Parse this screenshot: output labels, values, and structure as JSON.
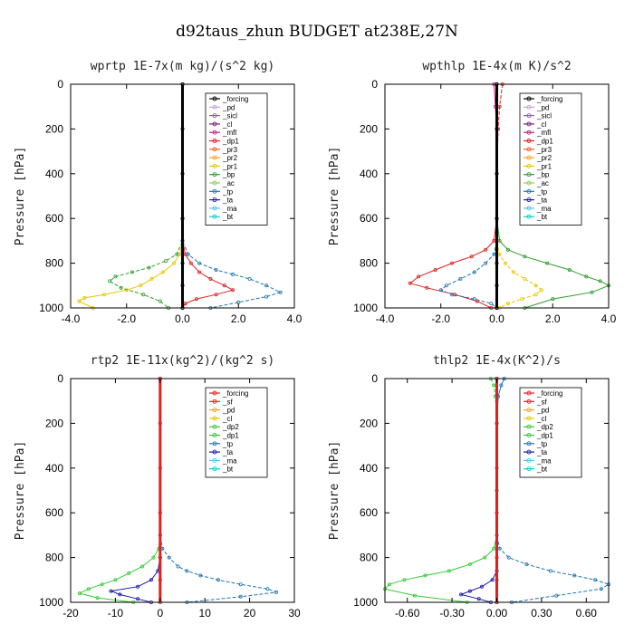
{
  "figure": {
    "title": "d92taus_zhun  BUDGET at238E,27N"
  },
  "chart_data": [
    {
      "type": "line",
      "title": "wprtp  1E-7x(m kg)/(s^2 kg)",
      "ylabel": "Pressure [hPa]",
      "xlim": [
        -4,
        4
      ],
      "ylim": [
        1000,
        0
      ],
      "xticks": [
        "-4.0",
        "-2.0",
        "0.0",
        "2.0",
        "4.0"
      ],
      "yticks": [
        "0",
        "200",
        "400",
        "600",
        "800",
        "1000"
      ],
      "legend": [
        "_forcing",
        "_pd",
        "_sicl",
        "_cl",
        "_mfl",
        "_dp1",
        "_pr3",
        "_pr2",
        "_pr1",
        "_bp",
        "_ac",
        "_tp",
        "_ta",
        "_ma",
        "_bt"
      ],
      "series": [
        {
          "name": "_pr1",
          "color": "#e8c700",
          "x": [
            0,
            0,
            0,
            -0.1,
            -0.3,
            -0.7,
            -1.1,
            -1.5,
            -2.0,
            -2.8,
            -3.5,
            -3.7,
            -3.2
          ],
          "y": [
            0,
            600,
            700,
            760,
            800,
            840,
            870,
            900,
            920,
            940,
            955,
            970,
            1000
          ]
        },
        {
          "name": "_bp",
          "color": "#2ca02c",
          "x": [
            0,
            0,
            0,
            -0.2,
            -0.6,
            -1.2,
            -1.8,
            -2.4,
            -2.6,
            -2.2,
            -1.4,
            -0.8,
            -0.5
          ],
          "y": [
            0,
            600,
            700,
            760,
            790,
            820,
            840,
            860,
            880,
            910,
            940,
            970,
            1000
          ]
        },
        {
          "name": "_dp1",
          "color": "#e02020",
          "x": [
            0,
            0,
            0,
            0.1,
            0.3,
            0.6,
            1.0,
            1.5,
            1.8,
            1.2,
            0.5,
            0.1,
            0
          ],
          "y": [
            0,
            600,
            700,
            760,
            800,
            840,
            870,
            900,
            920,
            940,
            960,
            980,
            1000
          ]
        },
        {
          "name": "_tp",
          "color": "#1f77b4",
          "x": [
            0,
            0,
            0,
            0.2,
            0.6,
            1.2,
            1.8,
            2.4,
            3.0,
            3.5,
            3.0,
            2.0,
            1.0
          ],
          "y": [
            0,
            600,
            700,
            760,
            800,
            830,
            850,
            870,
            900,
            930,
            950,
            975,
            1000
          ]
        },
        {
          "name": "_forcing",
          "color": "#000000",
          "x": [
            0,
            0,
            0,
            0,
            0,
            0,
            0
          ],
          "y": [
            0,
            200,
            400,
            600,
            800,
            900,
            1000
          ]
        }
      ]
    },
    {
      "type": "line",
      "title": "wpthlp  1E-4x(m K)/s^2",
      "ylabel": "Pressure [hPa]",
      "xlim": [
        -4,
        4
      ],
      "ylim": [
        1000,
        0
      ],
      "xticks": [
        "-4.0",
        "-2.0",
        "0.0",
        "2.0",
        "4.0"
      ],
      "yticks": [
        "0",
        "200",
        "400",
        "600",
        "800",
        "1000"
      ],
      "legend": [
        "_forcing",
        "_pd",
        "_sicl",
        "_cl",
        "_mfl",
        "_dp1",
        "_pr3",
        "_pr2",
        "_pr1",
        "_bp",
        "_ac",
        "_tp",
        "_ta",
        "_ma",
        "_bt"
      ],
      "series": [
        {
          "name": "_bp",
          "color": "#2ca02c",
          "x": [
            0,
            0,
            0.1,
            0.4,
            1.0,
            1.8,
            2.6,
            3.2,
            3.7,
            4.0,
            3.4,
            2.0,
            1.0
          ],
          "y": [
            0,
            600,
            700,
            740,
            770,
            800,
            830,
            860,
            880,
            900,
            930,
            960,
            1000
          ]
        },
        {
          "name": "_pr1",
          "color": "#e8c700",
          "x": [
            0,
            0,
            0,
            0.1,
            0.3,
            0.6,
            1.0,
            1.4,
            1.6,
            1.4,
            0.9,
            0.4,
            0.1
          ],
          "y": [
            0,
            600,
            700,
            760,
            800,
            840,
            870,
            900,
            920,
            940,
            960,
            980,
            1000
          ]
        },
        {
          "name": "_dp1",
          "color": "#e02020",
          "x": [
            0,
            0,
            -0.1,
            -0.4,
            -0.9,
            -1.6,
            -2.2,
            -2.8,
            -3.1,
            -2.5,
            -1.5,
            -0.7,
            -0.2
          ],
          "y": [
            0,
            600,
            700,
            740,
            770,
            800,
            830,
            860,
            890,
            910,
            940,
            970,
            1000
          ]
        },
        {
          "name": "_tp",
          "color": "#1f77b4",
          "x": [
            0,
            0,
            0,
            -0.1,
            -0.4,
            -0.8,
            -1.3,
            -1.8,
            -2.0,
            -1.6,
            -0.8,
            -0.2,
            0
          ],
          "y": [
            0,
            600,
            700,
            760,
            800,
            840,
            870,
            900,
            920,
            940,
            960,
            980,
            1000
          ]
        },
        {
          "name": "_mfl",
          "color": "#c51b7d",
          "x": [
            -0.1,
            -0.05,
            0,
            0,
            0,
            0
          ],
          "y": [
            0,
            100,
            200,
            400,
            700,
            1000
          ]
        },
        {
          "name": "_pr3",
          "color": "#e02020",
          "x": [
            0.2,
            0.1,
            0.05,
            0,
            0,
            0
          ],
          "y": [
            0,
            100,
            200,
            400,
            700,
            1000
          ]
        },
        {
          "name": "_forcing",
          "color": "#000000",
          "x": [
            0,
            0,
            0,
            0,
            0,
            0,
            0
          ],
          "y": [
            0,
            200,
            400,
            600,
            800,
            900,
            1000
          ]
        }
      ]
    },
    {
      "type": "line",
      "title": "rtp2  1E-11x(kg^2)/(kg^2 s)",
      "ylabel": "Pressure [hPa]",
      "xlim": [
        -20,
        30
      ],
      "ylim": [
        1000,
        0
      ],
      "xticks": [
        "-20",
        "-10",
        "0",
        "10",
        "20",
        "30"
      ],
      "yticks": [
        "0",
        "200",
        "400",
        "600",
        "800",
        "1000"
      ],
      "legend": [
        "_forcing",
        "_sf",
        "_pd",
        "_cl",
        "_dp2",
        "_dp1",
        "_tp",
        "_ta",
        "_ma",
        "_bt"
      ],
      "series": [
        {
          "name": "_dp1",
          "color": "#33cc33",
          "x": [
            0,
            0,
            -0.3,
            -1.5,
            -4,
            -7,
            -10,
            -13,
            -16,
            -18,
            -14,
            -6
          ],
          "y": [
            0,
            700,
            760,
            800,
            840,
            870,
            900,
            920,
            940,
            960,
            980,
            1000
          ]
        },
        {
          "name": "_tp",
          "color": "#1f77b4",
          "x": [
            0,
            0,
            0.5,
            2,
            4,
            6,
            9,
            13,
            18,
            24,
            26,
            18,
            6
          ],
          "y": [
            0,
            700,
            760,
            800,
            840,
            860,
            880,
            900,
            920,
            940,
            955,
            975,
            1000
          ]
        },
        {
          "name": "_ta",
          "color": "#1a1aaa",
          "x": [
            0,
            0,
            -0.5,
            -2,
            -5,
            -11,
            -9,
            -5,
            -2
          ],
          "y": [
            0,
            800,
            860,
            900,
            930,
            950,
            965,
            985,
            1000
          ]
        },
        {
          "name": "_forcing",
          "color": "#e02020",
          "x": [
            0,
            0,
            0,
            0,
            0,
            0,
            0
          ],
          "y": [
            0,
            200,
            400,
            600,
            800,
            900,
            1000
          ]
        }
      ]
    },
    {
      "type": "line",
      "title": "thlp2  1E-4x(K^2)/s",
      "ylabel": "Pressure [hPa]",
      "xlim": [
        -0.75,
        0.75
      ],
      "ylim": [
        1000,
        0
      ],
      "xticks": [
        "-0.60",
        "-0.30",
        "0.00",
        "0.30",
        "0.60"
      ],
      "yticks": [
        "0",
        "200",
        "400",
        "600",
        "800",
        "1000"
      ],
      "legend": [
        "_forcing",
        "_sf",
        "_pd",
        "_cl",
        "_dp2",
        "_dp1",
        "_tp",
        "_ta",
        "_ma",
        "_bt"
      ],
      "series": [
        {
          "name": "_dp1",
          "color": "#33cc33",
          "x": [
            0,
            0,
            -0.02,
            -0.08,
            -0.18,
            -0.32,
            -0.48,
            -0.62,
            -0.72,
            -0.75,
            -0.55,
            -0.2
          ],
          "y": [
            0,
            700,
            760,
            800,
            830,
            860,
            880,
            900,
            920,
            940,
            970,
            1000
          ]
        },
        {
          "name": "_tp",
          "color": "#1f77b4",
          "x": [
            0,
            0,
            0.02,
            0.08,
            0.2,
            0.36,
            0.52,
            0.66,
            0.75,
            0.7,
            0.4,
            0.1
          ],
          "y": [
            0,
            700,
            760,
            800,
            830,
            860,
            880,
            900,
            920,
            940,
            970,
            1000
          ]
        },
        {
          "name": "_ta",
          "color": "#1a1aaa",
          "x": [
            0,
            0,
            -0.03,
            -0.1,
            -0.18,
            -0.24,
            -0.12,
            -0.04
          ],
          "y": [
            0,
            860,
            900,
            930,
            950,
            965,
            985,
            1000
          ]
        },
        {
          "name": "_sf",
          "color": "#33cc33",
          "x": [
            -0.04,
            -0.02,
            -0.01,
            0,
            0,
            0
          ],
          "y": [
            0,
            30,
            80,
            200,
            500,
            1000
          ]
        },
        {
          "name": "_bt",
          "color": "#1f77b4",
          "x": [
            0.05,
            0.03,
            0.01,
            0,
            0,
            0
          ],
          "y": [
            0,
            30,
            80,
            200,
            500,
            1000
          ]
        },
        {
          "name": "_forcing",
          "color": "#e02020",
          "x": [
            0,
            0,
            0,
            0,
            0,
            0,
            0
          ],
          "y": [
            0,
            200,
            400,
            600,
            800,
            900,
            1000
          ]
        }
      ]
    }
  ]
}
